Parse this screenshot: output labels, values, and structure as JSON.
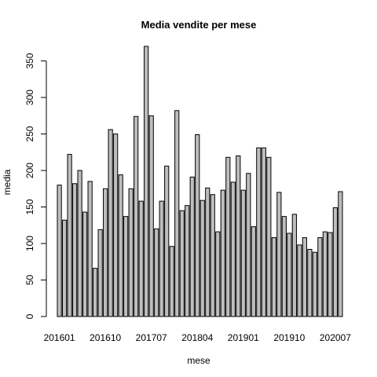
{
  "chart_data": {
    "type": "bar",
    "title": "Media vendite per mese",
    "xlabel": "mese",
    "ylabel": "media",
    "ylim": [
      0,
      370
    ],
    "yticks": [
      0,
      50,
      100,
      150,
      200,
      250,
      300,
      350
    ],
    "categories": [
      "201601",
      "201602",
      "201603",
      "201604",
      "201605",
      "201606",
      "201607",
      "201608",
      "201609",
      "201610",
      "201611",
      "201612",
      "201701",
      "201702",
      "201703",
      "201704",
      "201705",
      "201706",
      "201707",
      "201708",
      "201709",
      "201710",
      "201711",
      "201712",
      "201801",
      "201802",
      "201803",
      "201804",
      "201805",
      "201806",
      "201807",
      "201808",
      "201809",
      "201810",
      "201811",
      "201812",
      "201901",
      "201902",
      "201903",
      "201904",
      "201905",
      "201906",
      "201907",
      "201908",
      "201909",
      "201910",
      "201911",
      "201912",
      "202001",
      "202002",
      "202003",
      "202004",
      "202005",
      "202006",
      "202007",
      "202008"
    ],
    "xtick_labels": [
      "201601",
      "201610",
      "201707",
      "201804",
      "201901",
      "201910",
      "202007"
    ],
    "xtick_indices": [
      0,
      9,
      18,
      27,
      36,
      45,
      54
    ],
    "values": [
      180,
      132,
      222,
      182,
      200,
      143,
      185,
      66,
      119,
      175,
      256,
      250,
      194,
      137,
      175,
      274,
      158,
      370,
      275,
      120,
      158,
      206,
      96,
      282,
      145,
      152,
      191,
      249,
      159,
      176,
      167,
      116,
      173,
      218,
      184,
      220,
      173,
      196,
      123,
      231,
      231,
      218,
      108,
      170,
      137,
      114,
      140,
      98,
      108,
      92,
      88,
      108,
      116,
      115,
      149,
      171
    ],
    "colors": {
      "bar_fill": "#bebebe",
      "bar_stroke": "#000000"
    },
    "grid": false,
    "legend": "none"
  }
}
